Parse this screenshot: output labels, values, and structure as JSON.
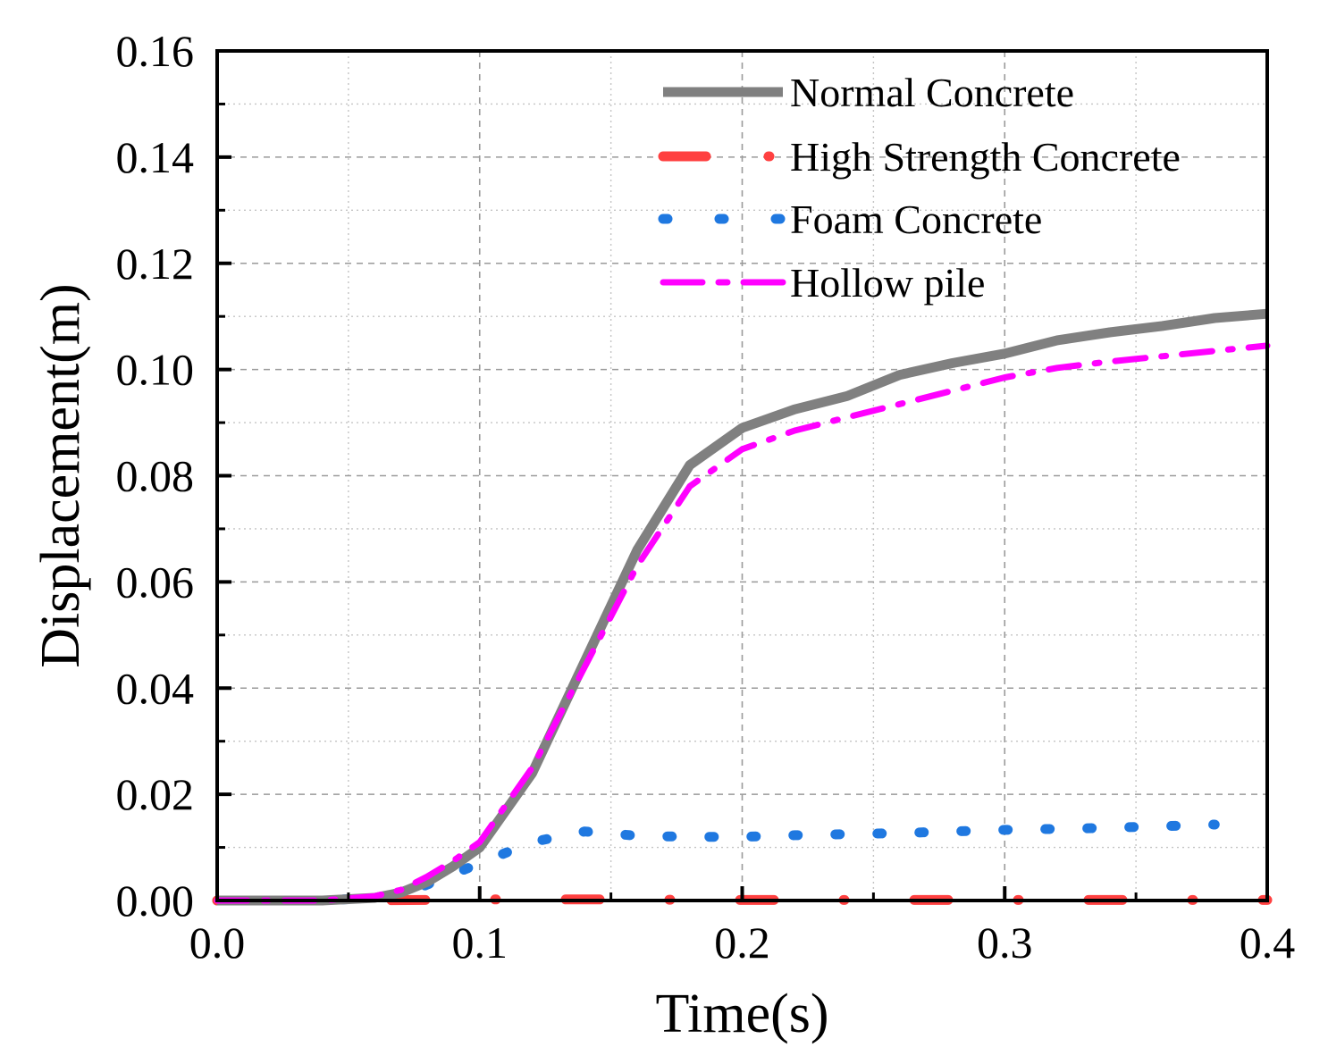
{
  "chart_data": {
    "type": "line",
    "title": "",
    "xlabel": "Time(s)",
    "ylabel": "Displacement(m)",
    "xlim": [
      0.0,
      0.4
    ],
    "ylim": [
      0.0,
      0.16
    ],
    "xticks": [
      0.0,
      0.1,
      0.2,
      0.3,
      0.4
    ],
    "xtick_labels": [
      "0.0",
      "0.1",
      "0.2",
      "0.3",
      "0.4"
    ],
    "yticks": [
      0.0,
      0.02,
      0.04,
      0.06,
      0.08,
      0.1,
      0.12,
      0.14,
      0.16
    ],
    "ytick_labels": [
      "0.00",
      "0.02",
      "0.04",
      "0.06",
      "0.08",
      "0.10",
      "0.12",
      "0.14",
      "0.16"
    ],
    "grid": true,
    "legend_position": "top-right",
    "series": [
      {
        "name": "Normal Concrete",
        "color": "#808080",
        "style": "solid",
        "x": [
          0.0,
          0.02,
          0.04,
          0.06,
          0.07,
          0.08,
          0.09,
          0.1,
          0.12,
          0.14,
          0.16,
          0.18,
          0.2,
          0.22,
          0.24,
          0.26,
          0.28,
          0.3,
          0.32,
          0.34,
          0.36,
          0.38,
          0.4
        ],
        "y": [
          0.0,
          0.0,
          0.0,
          0.0005,
          0.0015,
          0.0035,
          0.0065,
          0.01,
          0.024,
          0.045,
          0.066,
          0.082,
          0.089,
          0.0925,
          0.095,
          0.099,
          0.1012,
          0.103,
          0.1055,
          0.107,
          0.1082,
          0.1097,
          0.1105
        ]
      },
      {
        "name": "High Strength Concrete",
        "color": "#ff4040",
        "style": "dash-dot",
        "x": [
          0.0,
          0.05,
          0.08,
          0.1,
          0.15,
          0.2,
          0.25,
          0.3,
          0.35,
          0.4
        ],
        "y": [
          0.0,
          0.0,
          0.0001,
          0.0002,
          0.0002,
          0.0001,
          0.0001,
          0.0001,
          0.0001,
          0.0001
        ]
      },
      {
        "name": "Foam Concrete",
        "color": "#1f78e0",
        "style": "dotted",
        "x": [
          0.0,
          0.02,
          0.04,
          0.06,
          0.07,
          0.08,
          0.1,
          0.12,
          0.14,
          0.16,
          0.18,
          0.2,
          0.22,
          0.24,
          0.26,
          0.28,
          0.3,
          0.32,
          0.34,
          0.36,
          0.38
        ],
        "y": [
          0.0,
          0.0,
          0.0,
          0.0005,
          0.001,
          0.003,
          0.007,
          0.011,
          0.013,
          0.0122,
          0.012,
          0.012,
          0.0123,
          0.0125,
          0.0127,
          0.013,
          0.0133,
          0.0135,
          0.0137,
          0.014,
          0.0143
        ]
      },
      {
        "name": "Hollow pile",
        "color": "#ff00ff",
        "style": "dash-dot",
        "x": [
          0.0,
          0.02,
          0.04,
          0.06,
          0.07,
          0.08,
          0.09,
          0.1,
          0.12,
          0.14,
          0.16,
          0.18,
          0.2,
          0.22,
          0.24,
          0.26,
          0.28,
          0.3,
          0.32,
          0.34,
          0.36,
          0.38,
          0.4
        ],
        "y": [
          0.0,
          0.0,
          0.0,
          0.0008,
          0.002,
          0.0045,
          0.0075,
          0.011,
          0.025,
          0.044,
          0.063,
          0.078,
          0.085,
          0.0885,
          0.091,
          0.0935,
          0.096,
          0.0985,
          0.1003,
          0.1015,
          0.1025,
          0.1035,
          0.1045
        ]
      }
    ]
  }
}
